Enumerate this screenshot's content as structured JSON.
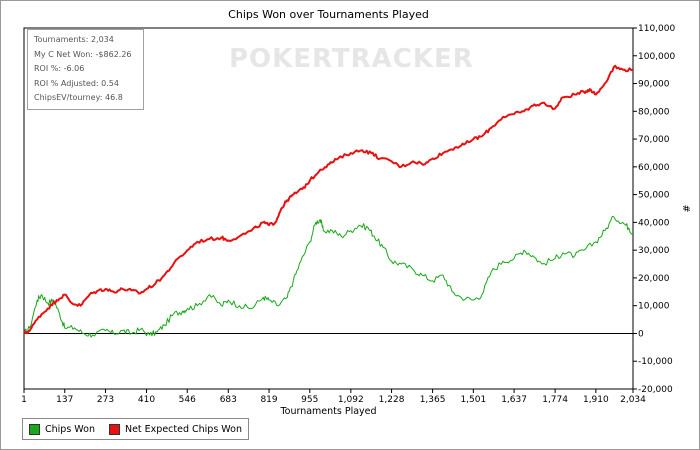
{
  "watermark": "POKERTRACKER",
  "stats": [
    "Tournaments: 2,034",
    "My C Net Won: -$862.26",
    "ROI %: -6.06",
    "ROI % Adjusted: 0.54",
    "ChipsEV/tourney: 46.8"
  ],
  "chart_data": {
    "type": "line",
    "title": "Chips Won over Tournaments Played",
    "xlabel": "Tournaments Played",
    "ylabel": "#",
    "xlim": [
      1,
      2034
    ],
    "ylim": [
      -20000,
      110000
    ],
    "x_ticks": [
      "1",
      "137",
      "273",
      "410",
      "546",
      "683",
      "819",
      "955",
      "1,092",
      "1,228",
      "1,365",
      "1,501",
      "1,637",
      "1,774",
      "1,910",
      "2,034"
    ],
    "y_ticks": [
      "110,000",
      "100,000",
      "90,000",
      "80,000",
      "70,000",
      "60,000",
      "50,000",
      "40,000",
      "30,000",
      "20,000",
      "10,000",
      "0",
      "-10,000",
      "-20,000"
    ],
    "legend_position": "bottom-left",
    "series": [
      {
        "name": "Chips Won",
        "color": "#18a818",
        "points": [
          [
            1,
            0
          ],
          [
            20,
            2000
          ],
          [
            45,
            12000
          ],
          [
            60,
            14000
          ],
          [
            80,
            11000
          ],
          [
            100,
            12000
          ],
          [
            120,
            7000
          ],
          [
            137,
            2000
          ],
          [
            170,
            2000
          ],
          [
            200,
            0
          ],
          [
            230,
            -500
          ],
          [
            273,
            1000
          ],
          [
            300,
            0
          ],
          [
            330,
            1000
          ],
          [
            360,
            0
          ],
          [
            390,
            1500
          ],
          [
            420,
            -500
          ],
          [
            445,
            500
          ],
          [
            470,
            3000
          ],
          [
            500,
            7000
          ],
          [
            530,
            8000
          ],
          [
            546,
            9000
          ],
          [
            580,
            10000
          ],
          [
            620,
            14000
          ],
          [
            660,
            10000
          ],
          [
            683,
            12000
          ],
          [
            720,
            10000
          ],
          [
            760,
            9000
          ],
          [
            800,
            13000
          ],
          [
            819,
            12000
          ],
          [
            850,
            10000
          ],
          [
            880,
            13000
          ],
          [
            900,
            19000
          ],
          [
            925,
            26000
          ],
          [
            955,
            33000
          ],
          [
            975,
            40000
          ],
          [
            990,
            41000
          ],
          [
            1000,
            37000
          ],
          [
            1030,
            37000
          ],
          [
            1060,
            35000
          ],
          [
            1092,
            37000
          ],
          [
            1120,
            39000
          ],
          [
            1150,
            38000
          ],
          [
            1170,
            35000
          ],
          [
            1200,
            31000
          ],
          [
            1228,
            26000
          ],
          [
            1260,
            25000
          ],
          [
            1300,
            23000
          ],
          [
            1330,
            21000
          ],
          [
            1365,
            19000
          ],
          [
            1400,
            21000
          ],
          [
            1430,
            15000
          ],
          [
            1460,
            13000
          ],
          [
            1501,
            12000
          ],
          [
            1530,
            14000
          ],
          [
            1560,
            22000
          ],
          [
            1600,
            26000
          ],
          [
            1637,
            27000
          ],
          [
            1670,
            30000
          ],
          [
            1700,
            28000
          ],
          [
            1730,
            25000
          ],
          [
            1774,
            27000
          ],
          [
            1800,
            29000
          ],
          [
            1840,
            28000
          ],
          [
            1870,
            30000
          ],
          [
            1910,
            33000
          ],
          [
            1940,
            37000
          ],
          [
            1970,
            42000
          ],
          [
            2000,
            40000
          ],
          [
            2020,
            38000
          ],
          [
            2034,
            36000
          ]
        ]
      },
      {
        "name": "Net Expected Chips Won",
        "color": "#e81010",
        "points": [
          [
            1,
            0
          ],
          [
            20,
            1000
          ],
          [
            50,
            6000
          ],
          [
            80,
            9000
          ],
          [
            110,
            12000
          ],
          [
            137,
            14000
          ],
          [
            160,
            11000
          ],
          [
            190,
            10000
          ],
          [
            220,
            14000
          ],
          [
            250,
            15500
          ],
          [
            273,
            16000
          ],
          [
            300,
            15000
          ],
          [
            330,
            16000
          ],
          [
            360,
            15500
          ],
          [
            390,
            14500
          ],
          [
            410,
            16000
          ],
          [
            440,
            18000
          ],
          [
            470,
            21000
          ],
          [
            500,
            25000
          ],
          [
            546,
            30000
          ],
          [
            580,
            33000
          ],
          [
            620,
            34000
          ],
          [
            660,
            34500
          ],
          [
            683,
            33500
          ],
          [
            720,
            35000
          ],
          [
            760,
            37000
          ],
          [
            800,
            40000
          ],
          [
            819,
            39000
          ],
          [
            840,
            40000
          ],
          [
            860,
            45000
          ],
          [
            880,
            48000
          ],
          [
            900,
            50000
          ],
          [
            930,
            52000
          ],
          [
            955,
            55000
          ],
          [
            990,
            59000
          ],
          [
            1020,
            61000
          ],
          [
            1050,
            63000
          ],
          [
            1092,
            65000
          ],
          [
            1130,
            66000
          ],
          [
            1160,
            65000
          ],
          [
            1190,
            63000
          ],
          [
            1228,
            62000
          ],
          [
            1260,
            60000
          ],
          [
            1300,
            62000
          ],
          [
            1340,
            61000
          ],
          [
            1365,
            63000
          ],
          [
            1400,
            65000
          ],
          [
            1440,
            67000
          ],
          [
            1470,
            68000
          ],
          [
            1501,
            70000
          ],
          [
            1530,
            71000
          ],
          [
            1560,
            74000
          ],
          [
            1600,
            78000
          ],
          [
            1637,
            79000
          ],
          [
            1670,
            80000
          ],
          [
            1700,
            82000
          ],
          [
            1730,
            83000
          ],
          [
            1774,
            81000
          ],
          [
            1800,
            85000
          ],
          [
            1840,
            86000
          ],
          [
            1870,
            87000
          ],
          [
            1890,
            88000
          ],
          [
            1910,
            86000
          ],
          [
            1940,
            90000
          ],
          [
            1970,
            96000
          ],
          [
            2000,
            95000
          ],
          [
            2034,
            95000
          ]
        ]
      }
    ]
  }
}
